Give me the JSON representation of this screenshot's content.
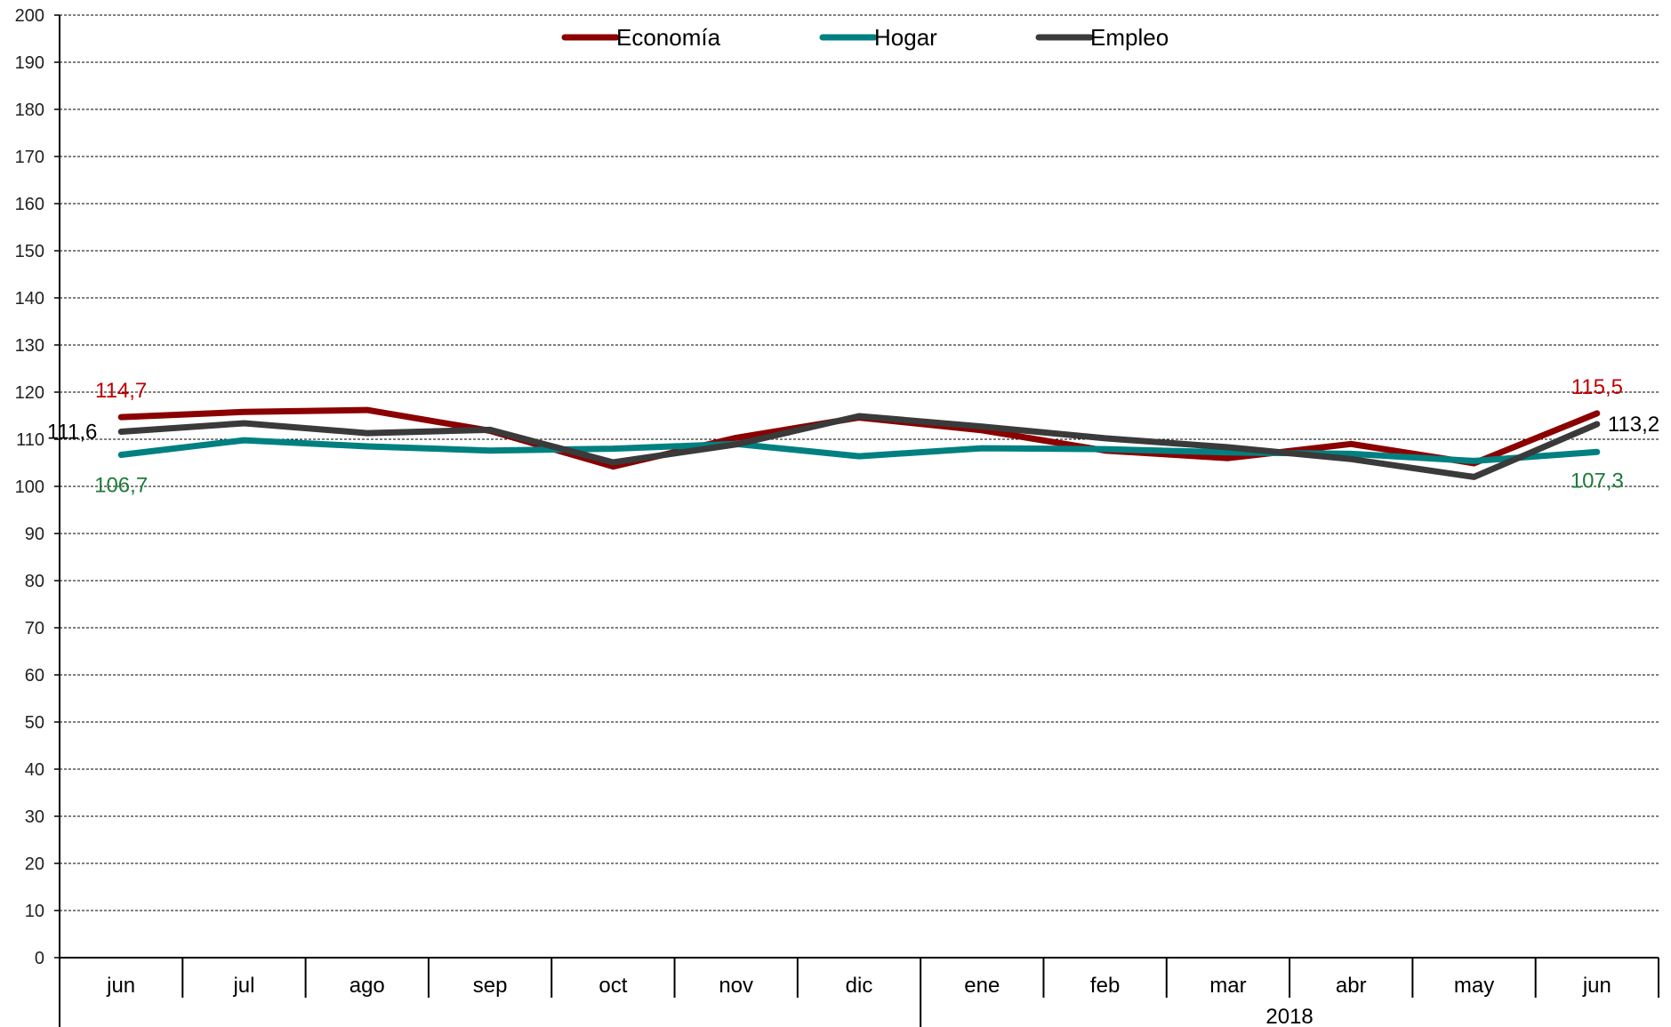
{
  "chart_data": {
    "type": "line",
    "title": "",
    "xlabel": "",
    "ylabel": "",
    "ylim": [
      0,
      200
    ],
    "ytick_step": 10,
    "grid": true,
    "legend_position": "top-center",
    "categories": [
      "jun",
      "jul",
      "ago",
      "sep",
      "oct",
      "nov",
      "dic",
      "ene",
      "feb",
      "mar",
      "abr",
      "may",
      "jun"
    ],
    "year_label": "2018",
    "year_starts_at_index": 7,
    "series": [
      {
        "name": "Economía",
        "color": "#8B0000",
        "values": [
          114.7,
          115.8,
          116.2,
          111.8,
          104.2,
          110.3,
          114.6,
          111.9,
          107.6,
          106.0,
          109.0,
          104.9,
          115.5
        ],
        "start_label": "114,7",
        "end_label": "115,5",
        "label_color": "#C00000"
      },
      {
        "name": "Hogar",
        "color": "#008080",
        "values": [
          106.7,
          109.8,
          108.5,
          107.6,
          108.0,
          109.0,
          106.4,
          108.1,
          107.9,
          107.2,
          106.9,
          105.4,
          107.3
        ],
        "start_label": "106,7",
        "end_label": "107,3",
        "label_color": "#1E7B3A"
      },
      {
        "name": "Empleo",
        "color": "#3A3A3A",
        "values": [
          111.6,
          113.4,
          111.3,
          112.0,
          105.1,
          108.9,
          114.9,
          112.7,
          110.2,
          108.3,
          105.8,
          102.0,
          113.2
        ],
        "start_label": "111,6",
        "end_label": "113,2",
        "label_color": "#000000"
      }
    ]
  }
}
